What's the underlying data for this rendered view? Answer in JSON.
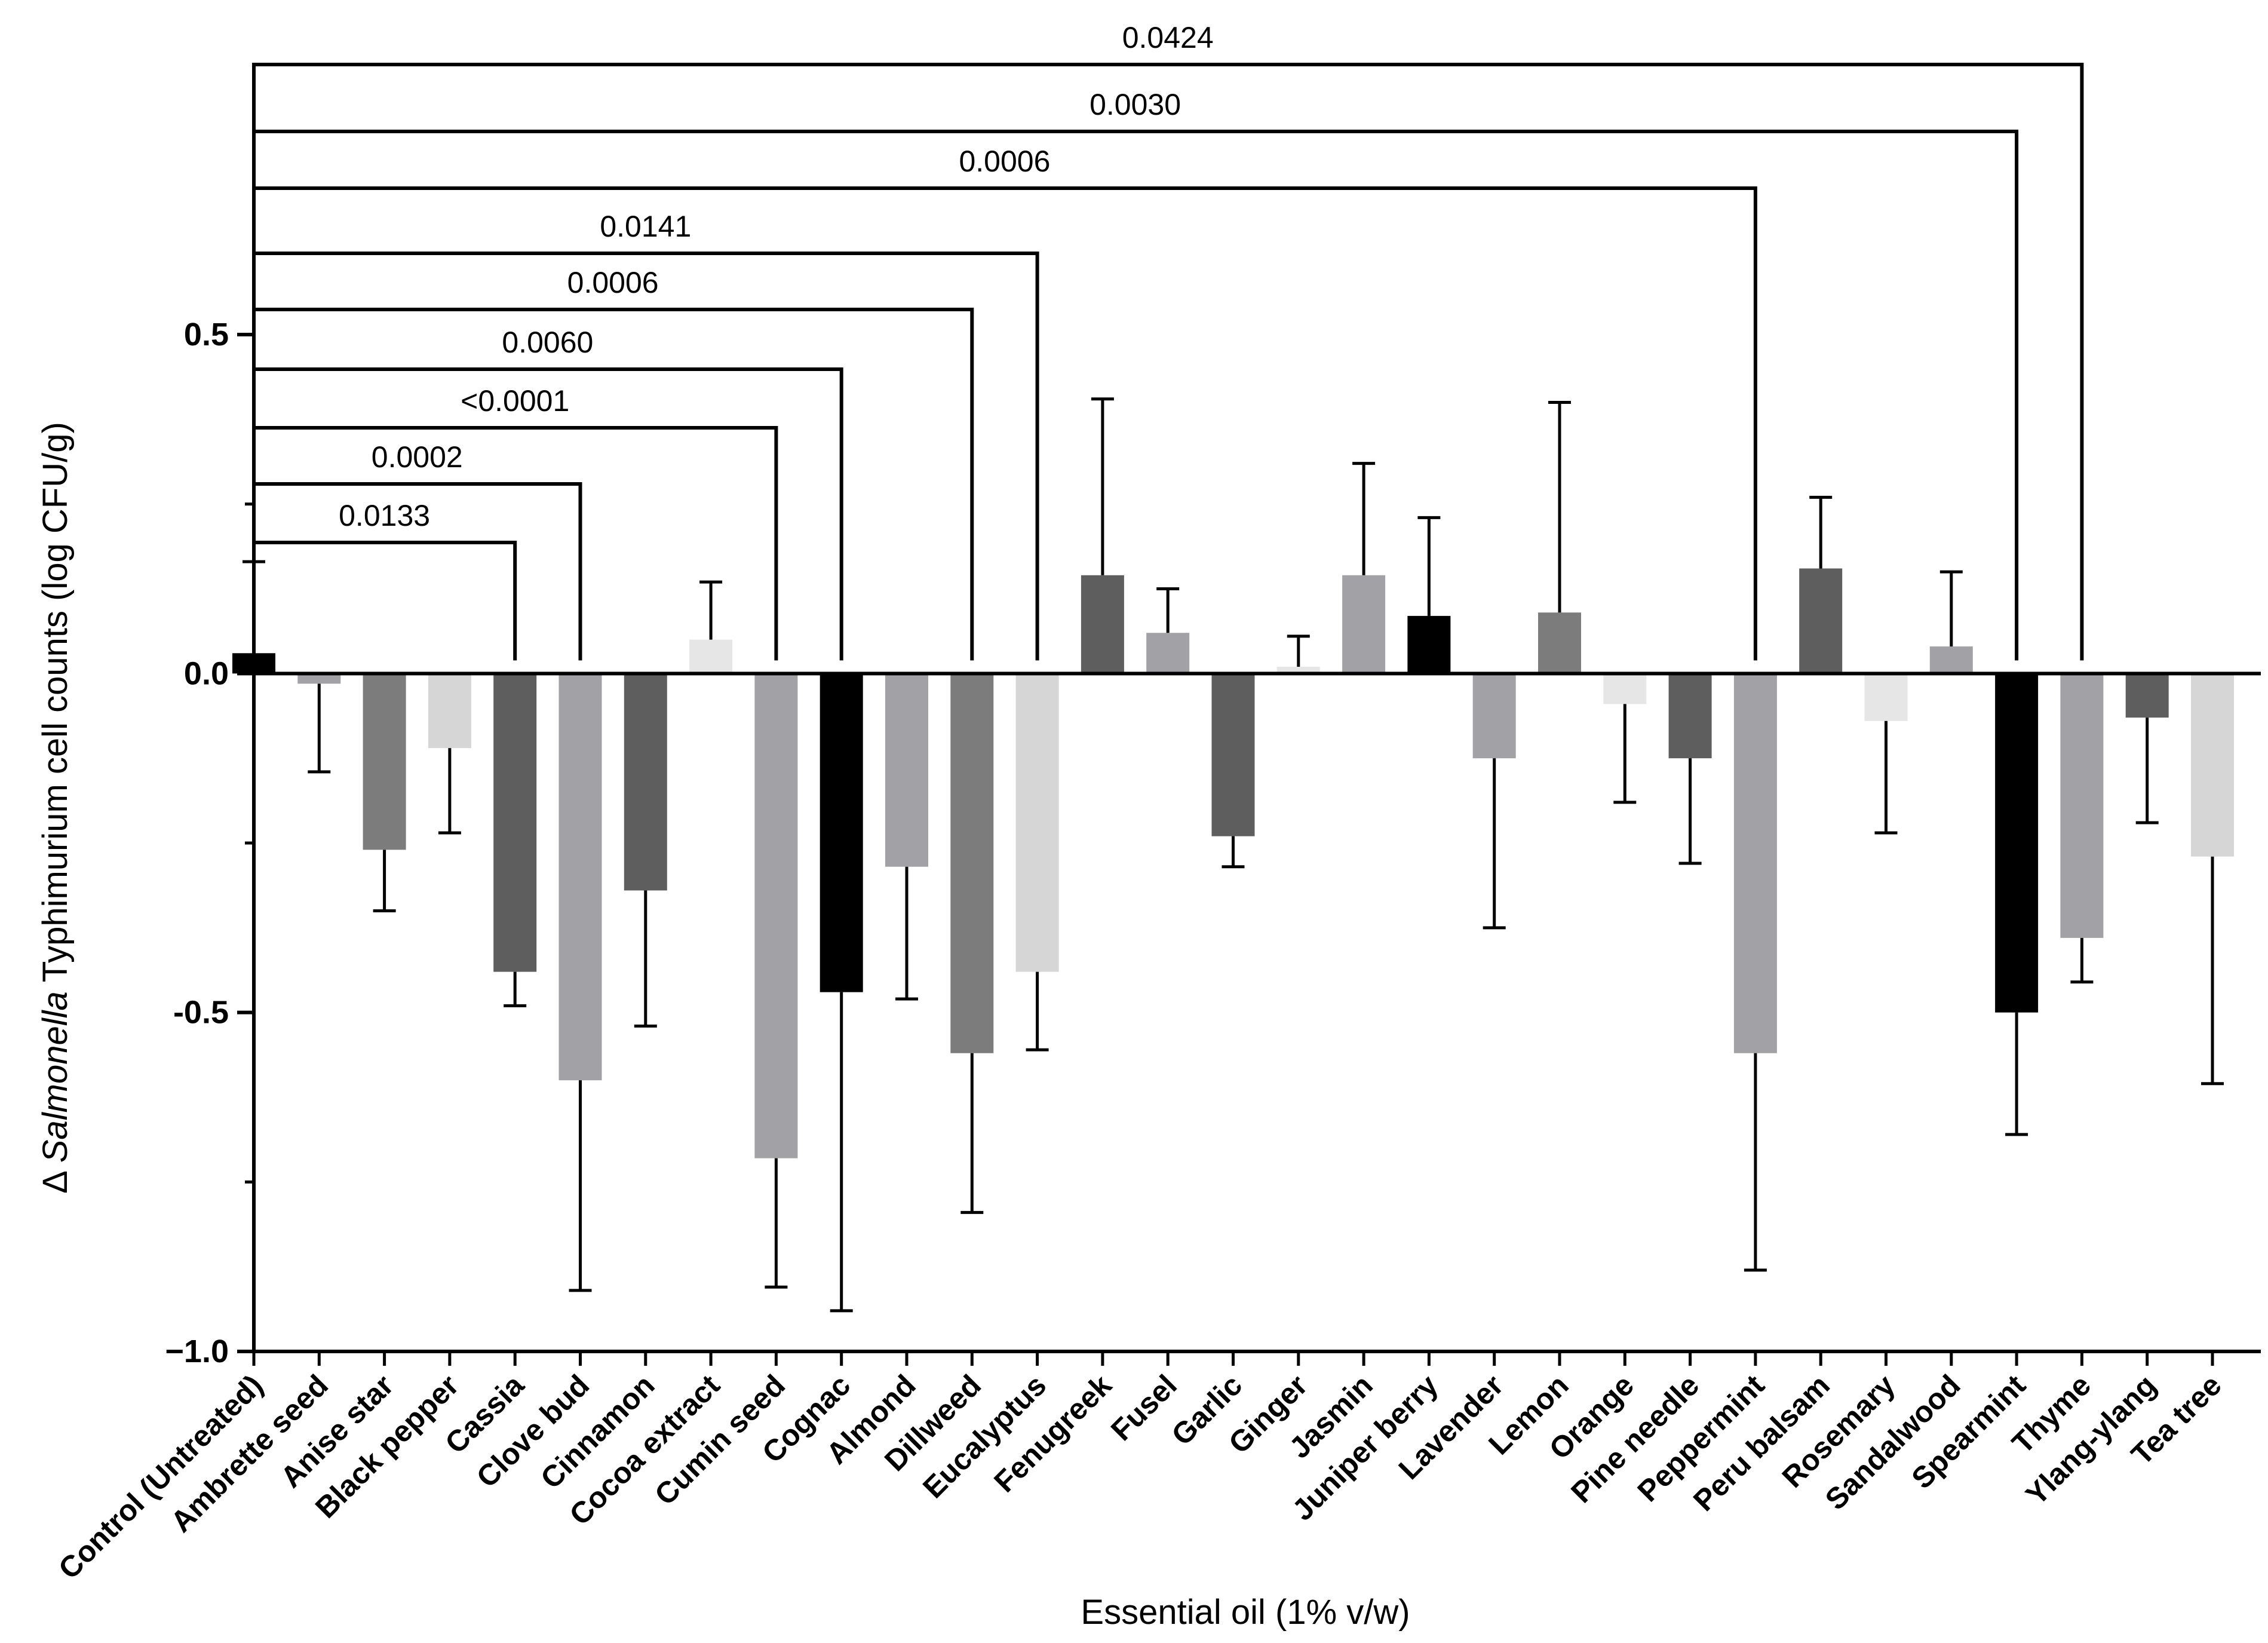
{
  "chart_data": {
    "type": "bar",
    "title": "",
    "xlabel": "Essential oil (1% v/w)",
    "ylabel": {
      "prefix": "Δ ",
      "italic": "Salmonella",
      "suffix": " Typhimurium cell counts (log CFU/g)"
    },
    "ylim": [
      -1.0,
      0.5
    ],
    "yticks": [
      {
        "value": 0.5,
        "label": "0.5"
      },
      {
        "value": 0.0,
        "label": "0.0"
      },
      {
        "value": -0.5,
        "label": "-0.5"
      },
      {
        "value": -1.0,
        "label": "−1.0"
      }
    ],
    "categories": [
      "Control (Untreated)",
      "Ambrette seed",
      "Anise star",
      "Black pepper",
      "Cassia",
      "Clove bud",
      "Cinnamon",
      "Cocoa extract",
      "Cumin seed",
      "Cognac",
      "Almond",
      "Dillweed",
      "Eucalyptus",
      "Fenugreek",
      "Fusel",
      "Garlic",
      "Ginger",
      "Jasmin",
      "Juniper berry",
      "Lavender",
      "Lemon",
      "Orange",
      "Pine needle",
      "Peppermint",
      "Peru balsam",
      "Rosemary",
      "Sandalwood",
      "Spearmint",
      "Thyme",
      "Ylang-ylang",
      "Tea tree"
    ],
    "values": [
      0.03,
      -0.015,
      -0.26,
      -0.11,
      -0.44,
      -0.6,
      -0.32,
      0.05,
      -0.715,
      -0.47,
      -0.285,
      -0.56,
      -0.44,
      0.145,
      0.06,
      -0.24,
      0.01,
      0.145,
      0.085,
      -0.125,
      0.09,
      -0.045,
      -0.125,
      -0.56,
      0.155,
      -0.07,
      0.04,
      -0.5,
      -0.39,
      -0.065,
      -0.27
    ],
    "errors": [
      0.135,
      0.13,
      0.09,
      0.125,
      0.05,
      0.31,
      0.2,
      0.085,
      0.19,
      0.47,
      0.195,
      0.235,
      0.115,
      0.26,
      0.065,
      0.045,
      0.045,
      0.165,
      0.145,
      0.25,
      0.31,
      0.145,
      0.155,
      0.32,
      0.105,
      0.165,
      0.11,
      0.18,
      0.065,
      0.155,
      0.335
    ],
    "colors": [
      "#000000",
      "#a2a2a6",
      "#7c7c7c",
      "#d6d6d6",
      "#5e5e5e",
      "#a2a2a6",
      "#5e5e5e",
      "#e6e6e6",
      "#a2a2a6",
      "#000000",
      "#a2a2a6",
      "#7c7c7c",
      "#d6d6d6",
      "#5e5e5e",
      "#a2a2a6",
      "#5e5e5e",
      "#e6e6e6",
      "#a2a2a6",
      "#000000",
      "#a2a2a6",
      "#7c7c7c",
      "#e6e6e6",
      "#5e5e5e",
      "#a2a2a6",
      "#5e5e5e",
      "#e6e6e6",
      "#a2a2a6",
      "#000000",
      "#a2a2a6",
      "#5e5e5e",
      "#d6d6d6"
    ],
    "comparisons": [
      {
        "from": "Control (Untreated)",
        "to": "Cassia",
        "p": "0.0133"
      },
      {
        "from": "Control (Untreated)",
        "to": "Clove bud",
        "p": "0.0002"
      },
      {
        "from": "Control (Untreated)",
        "to": "Cumin seed",
        "p": "<0.0001"
      },
      {
        "from": "Control (Untreated)",
        "to": "Cognac",
        "p": "0.0060"
      },
      {
        "from": "Control (Untreated)",
        "to": "Dillweed",
        "p": "0.0006"
      },
      {
        "from": "Control (Untreated)",
        "to": "Eucalyptus",
        "p": "0.0141"
      },
      {
        "from": "Control (Untreated)",
        "to": "Peppermint",
        "p": "0.0006"
      },
      {
        "from": "Control (Untreated)",
        "to": "Spearmint",
        "p": "0.0030"
      },
      {
        "from": "Control (Untreated)",
        "to": "Thyme",
        "p": "0.0424"
      }
    ]
  }
}
